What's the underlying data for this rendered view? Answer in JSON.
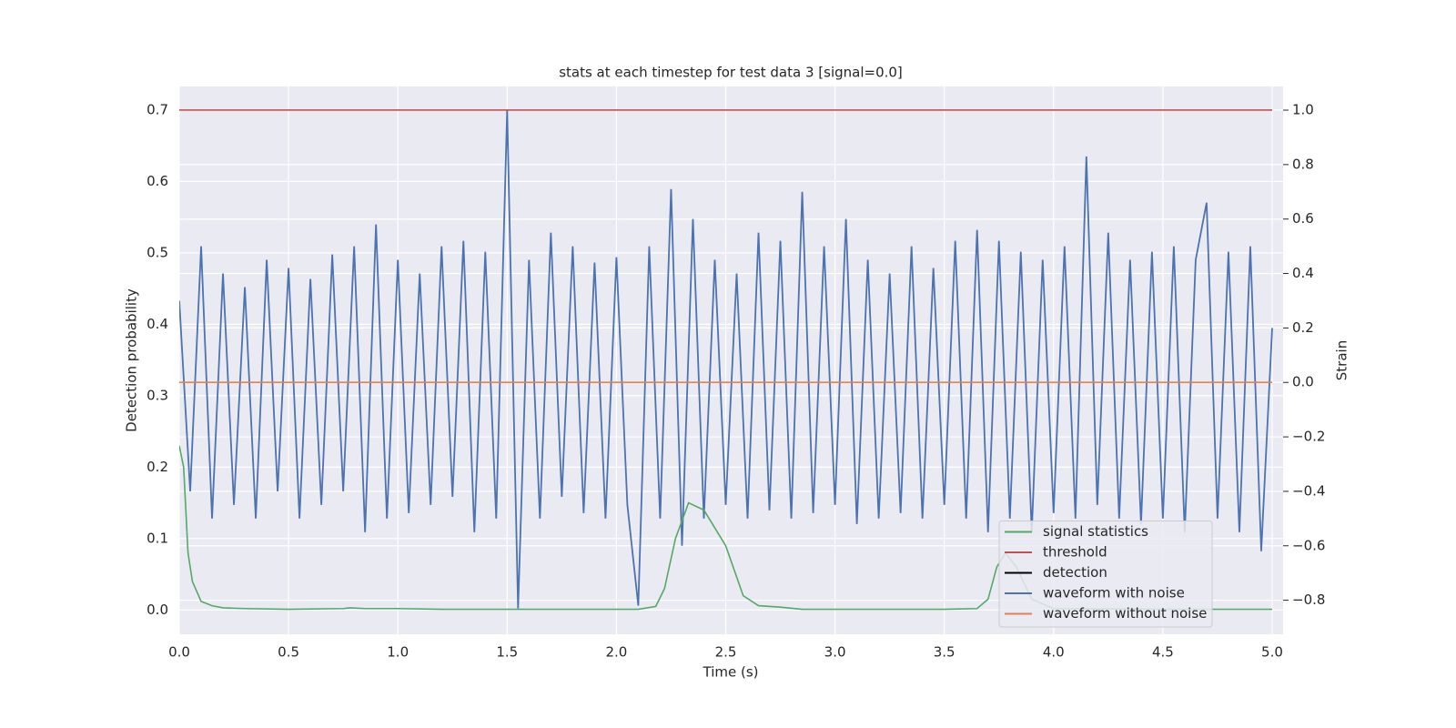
{
  "chart_data": {
    "type": "line",
    "title": "stats at each timestep for test data 3 [signal=0.0]",
    "x_label": "Time (s)",
    "y_label": "Detection probability",
    "y2_label": "Strain",
    "xlim": [
      0,
      5.05
    ],
    "ylim": [
      -0.034,
      0.733
    ],
    "y2lim": [
      -0.925,
      1.087
    ],
    "xticks": [
      {
        "value": 0,
        "label": "0.0"
      },
      0.5,
      {
        "value": 1,
        "label": "1.0"
      },
      1.5,
      {
        "value": 2,
        "label": "2.0"
      },
      2.5,
      {
        "value": 3,
        "label": "3.0"
      },
      3.5,
      {
        "value": 4,
        "label": "4.0"
      },
      4.5,
      {
        "value": 5,
        "label": "5.0"
      }
    ],
    "yticks": [
      {
        "value": 0,
        "label": "0.0"
      },
      0.1,
      0.2,
      0.3,
      0.4,
      0.5,
      0.6,
      0.7
    ],
    "y2ticks": [
      {
        "value": -0.8,
        "label": "−0.8"
      },
      {
        "value": -0.6,
        "label": "−0.6"
      },
      {
        "value": -0.4,
        "label": "−0.4"
      },
      {
        "value": -0.2,
        "label": "−0.2"
      },
      {
        "value": 0,
        "label": "0.0"
      },
      0.2,
      0.4,
      0.6,
      0.8,
      {
        "value": 1,
        "label": "1.0"
      }
    ],
    "grid": true,
    "legend_location": "lower right",
    "series": [
      {
        "name": "signal statistics",
        "color": "#55a868",
        "x": [
          0,
          0.02,
          0.04,
          0.06,
          0.1,
          0.15,
          0.2,
          0.3,
          0.5,
          0.75,
          0.78,
          0.85,
          1.0,
          1.2,
          2.0,
          2.1,
          2.18,
          2.22,
          2.27,
          2.33,
          2.4,
          2.5,
          2.58,
          2.65,
          2.75,
          2.85,
          3.5,
          3.65,
          3.7,
          3.74,
          3.78,
          3.83,
          3.9,
          4.0,
          4.5,
          5.0
        ],
        "values": [
          0.23,
          0.2,
          0.08,
          0.04,
          0.012,
          0.006,
          0.003,
          0.002,
          0.001,
          0.002,
          0.003,
          0.002,
          0.002,
          0.001,
          0.001,
          0.001,
          0.005,
          0.03,
          0.1,
          0.15,
          0.14,
          0.09,
          0.02,
          0.006,
          0.004,
          0.001,
          0.001,
          0.002,
          0.015,
          0.06,
          0.08,
          0.06,
          0.015,
          0.002,
          0.001,
          0.001
        ]
      },
      {
        "name": "threshold",
        "color": "#c44e52",
        "x": [
          0,
          5
        ],
        "values": [
          0.7,
          0.7
        ]
      },
      {
        "name": "detection",
        "color": "#000000",
        "x": [],
        "values": []
      },
      {
        "name": "waveform with noise",
        "color": "#4c72b0",
        "axis": "y2",
        "x": [
          0,
          0.05,
          0.1,
          0.15,
          0.2,
          0.25,
          0.3,
          0.35,
          0.4,
          0.45,
          0.5,
          0.55,
          0.6,
          0.65,
          0.7,
          0.75,
          0.8,
          0.85,
          0.9,
          0.95,
          1.0,
          1.05,
          1.1,
          1.15,
          1.2,
          1.25,
          1.3,
          1.35,
          1.4,
          1.45,
          1.5,
          1.55,
          1.6,
          1.65,
          1.7,
          1.75,
          1.8,
          1.85,
          1.9,
          1.95,
          2.0,
          2.05,
          2.1,
          2.15,
          2.2,
          2.25,
          2.3,
          2.35,
          2.4,
          2.45,
          2.5,
          2.55,
          2.6,
          2.65,
          2.7,
          2.75,
          2.8,
          2.85,
          2.9,
          2.95,
          3.0,
          3.05,
          3.1,
          3.15,
          3.2,
          3.25,
          3.3,
          3.35,
          3.4,
          3.45,
          3.5,
          3.55,
          3.6,
          3.65,
          3.7,
          3.75,
          3.8,
          3.85,
          3.9,
          3.95,
          4.0,
          4.05,
          4.1,
          4.15,
          4.2,
          4.25,
          4.3,
          4.35,
          4.4,
          4.45,
          4.5,
          4.55,
          4.6,
          4.65,
          4.7,
          4.75,
          4.8,
          4.85,
          4.9,
          4.95,
          5.0
        ],
        "values": [
          0.3,
          -0.4,
          0.5,
          -0.5,
          0.4,
          -0.45,
          0.35,
          -0.5,
          0.45,
          -0.4,
          0.42,
          -0.5,
          0.38,
          -0.45,
          0.47,
          -0.4,
          0.5,
          -0.55,
          0.58,
          -0.5,
          0.45,
          -0.48,
          0.4,
          -0.45,
          0.5,
          -0.42,
          0.52,
          -0.55,
          0.48,
          -0.5,
          1.0,
          -0.83,
          0.45,
          -0.5,
          0.55,
          -0.42,
          0.5,
          -0.48,
          0.44,
          -0.5,
          0.46,
          -0.45,
          -0.82,
          0.5,
          -0.5,
          0.71,
          -0.6,
          0.6,
          -0.5,
          0.45,
          -0.45,
          0.4,
          -0.5,
          0.55,
          -0.47,
          0.52,
          -0.5,
          0.7,
          -0.48,
          0.5,
          -0.45,
          0.6,
          -0.52,
          0.45,
          -0.5,
          0.4,
          -0.48,
          0.5,
          -0.5,
          0.42,
          -0.45,
          0.52,
          -0.5,
          0.56,
          -0.55,
          0.52,
          -0.5,
          0.48,
          -0.55,
          0.45,
          -0.48,
          0.5,
          -0.5,
          0.83,
          -0.45,
          0.55,
          -0.5,
          0.45,
          -0.52,
          0.48,
          -0.5,
          0.5,
          -0.55,
          0.45,
          0.66,
          -0.5,
          0.48,
          -0.55,
          0.5,
          -0.62,
          0.2
        ]
      },
      {
        "name": "waveform without noise",
        "color": "#dd8452",
        "axis": "y2",
        "x": [
          0,
          5
        ],
        "values": [
          0,
          0
        ]
      }
    ]
  }
}
